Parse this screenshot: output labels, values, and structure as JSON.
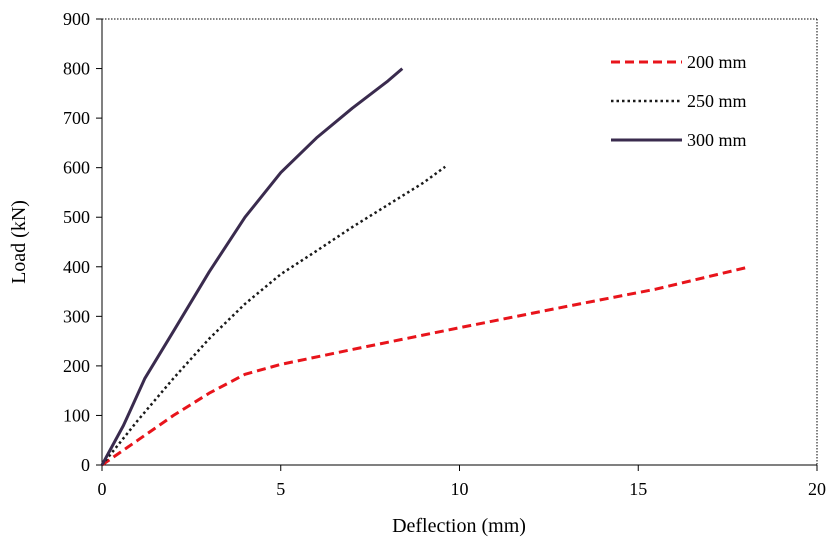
{
  "chart_data": {
    "type": "line",
    "xlabel": "Deflection (mm)",
    "ylabel": "Load (kN)",
    "xlim": [
      0,
      20
    ],
    "ylim": [
      0,
      900
    ],
    "x_ticks": [
      0,
      5,
      10,
      15,
      20
    ],
    "y_ticks": [
      0,
      100,
      200,
      300,
      400,
      500,
      600,
      700,
      800,
      900
    ],
    "grid": false,
    "legend_position": "top-right",
    "series": [
      {
        "name": "200 mm",
        "color": "#e8141b",
        "style": "dashed",
        "x": [
          0,
          1,
          2,
          3,
          4,
          5,
          7,
          10,
          13,
          15.5,
          18
        ],
        "y": [
          0,
          50,
          100,
          145,
          183,
          203,
          233,
          277,
          320,
          355,
          398
        ]
      },
      {
        "name": "250 mm",
        "color": "#1a1a1a",
        "style": "dotted",
        "x": [
          0,
          1,
          2,
          3,
          4,
          5,
          6,
          7,
          8,
          9,
          9.6
        ],
        "y": [
          0,
          90,
          175,
          255,
          325,
          385,
          432,
          480,
          525,
          570,
          602
        ]
      },
      {
        "name": "300 mm",
        "color": "#3a2b4e",
        "style": "solid",
        "x": [
          0,
          0.6,
          1.2,
          2,
          3,
          4,
          5,
          6,
          7,
          8,
          8.4
        ],
        "y": [
          0,
          80,
          175,
          270,
          390,
          500,
          590,
          660,
          720,
          775,
          800
        ]
      }
    ]
  }
}
